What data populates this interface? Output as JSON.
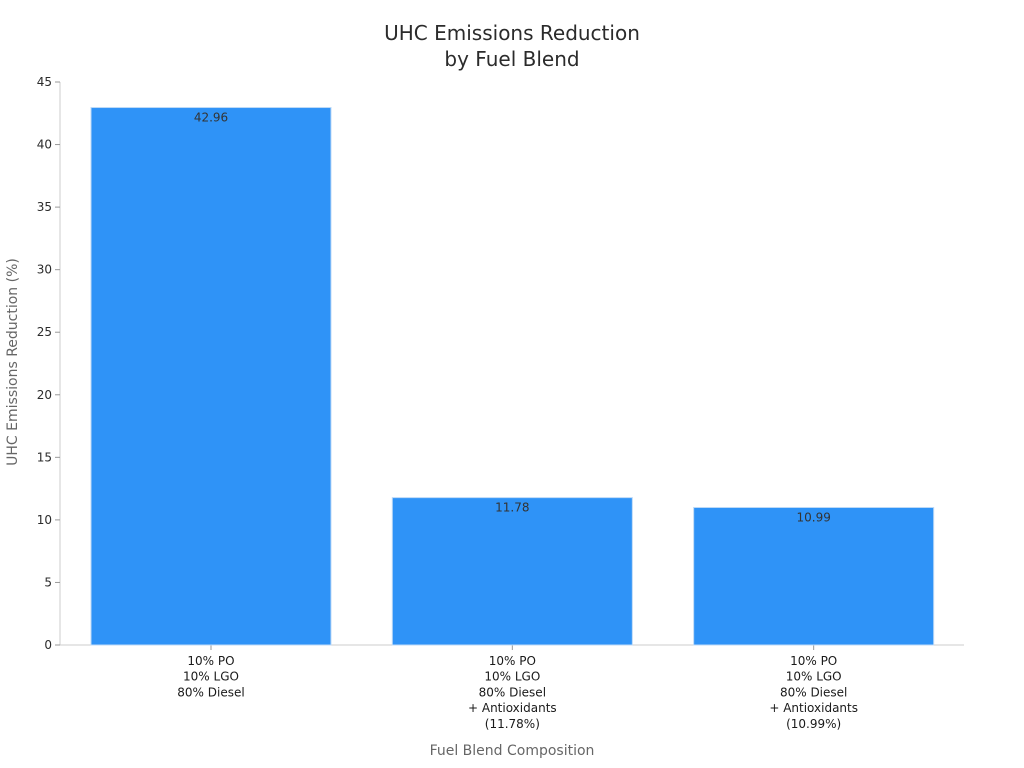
{
  "chart_data": {
    "type": "bar",
    "title_lines": [
      "UHC Emissions Reduction",
      "by Fuel Blend"
    ],
    "categories": [
      [
        "10% PO",
        "10% LGO",
        "80% Diesel"
      ],
      [
        "10% PO",
        "10% LGO",
        "80% Diesel",
        "+ Antioxidants",
        "(11.78%)"
      ],
      [
        "10% PO",
        "10% LGO",
        "80% Diesel",
        "+ Antioxidants",
        "(10.99%)"
      ]
    ],
    "values": [
      42.96,
      11.78,
      10.99
    ],
    "data_labels": [
      "42.96",
      "11.78",
      "10.99"
    ],
    "xlabel": "Fuel Blend Composition",
    "ylabel": "UHC Emissions Reduction (%)",
    "ylim": [
      0,
      45
    ],
    "yticks": [
      0,
      5,
      10,
      15,
      20,
      25,
      30,
      35,
      40,
      45
    ],
    "bar_color": "#2f93f7",
    "grid": false,
    "legend": "none"
  }
}
